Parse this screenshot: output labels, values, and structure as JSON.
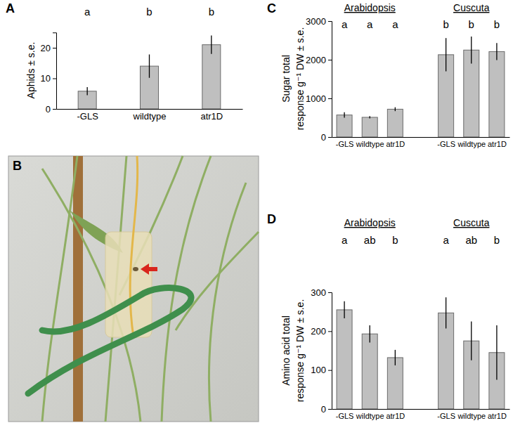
{
  "chart_data": [
    {
      "type": "bar",
      "title": "A",
      "y_label": [
        "Aphids ± s.e."
      ],
      "categories": [
        "-GLS",
        "wildtype",
        "atr1D"
      ],
      "values": [
        5.8,
        14,
        21
      ],
      "errors": [
        1.3,
        3.8,
        3
      ],
      "letters": [
        "a",
        "b",
        "b"
      ],
      "ylim": [
        0,
        25
      ],
      "yticks": [
        0,
        10,
        20
      ],
      "color": "#bfbfbf"
    },
    {
      "type": "bar",
      "title": "C",
      "y_label": [
        "Sugar total",
        "response g⁻¹ DW ± s.e."
      ],
      "group_labels": [
        "Arabidopsis",
        "Cuscuta"
      ],
      "categories": [
        "-GLS",
        "wildtype",
        "atr1D",
        null,
        "-GLS",
        "wildtype",
        "atr1D"
      ],
      "values": [
        570,
        510,
        720,
        null,
        2130,
        2250,
        2210
      ],
      "errors": [
        70,
        30,
        50,
        null,
        430,
        350,
        220
      ],
      "letters": [
        "a",
        "a",
        "a",
        null,
        "b",
        "b",
        "b"
      ],
      "ylim": [
        0,
        3000
      ],
      "yticks": [
        0,
        1000,
        2000,
        3000
      ],
      "color": "#bfbfbf"
    },
    {
      "type": "bar",
      "title": "D",
      "y_label": [
        "Amino acid total",
        "response g⁻¹ DW ± s.e."
      ],
      "group_labels": [
        "Arabidopsis",
        "Cuscuta"
      ],
      "categories": [
        "-GLS",
        "wildtype",
        "atr1D",
        null,
        "-GLS",
        "wildtype",
        "atr1D"
      ],
      "values": [
        255,
        193,
        132,
        null,
        247,
        175,
        145
      ],
      "errors": [
        22,
        22,
        20,
        null,
        40,
        50,
        70
      ],
      "letters": [
        "a",
        "ab",
        "b",
        null,
        "a",
        "ab",
        "b"
      ],
      "ylim": [
        0,
        300
      ],
      "yticks": [
        0,
        100,
        200,
        300
      ],
      "color": "#bfbfbf"
    }
  ],
  "photo": {
    "label": "B"
  }
}
